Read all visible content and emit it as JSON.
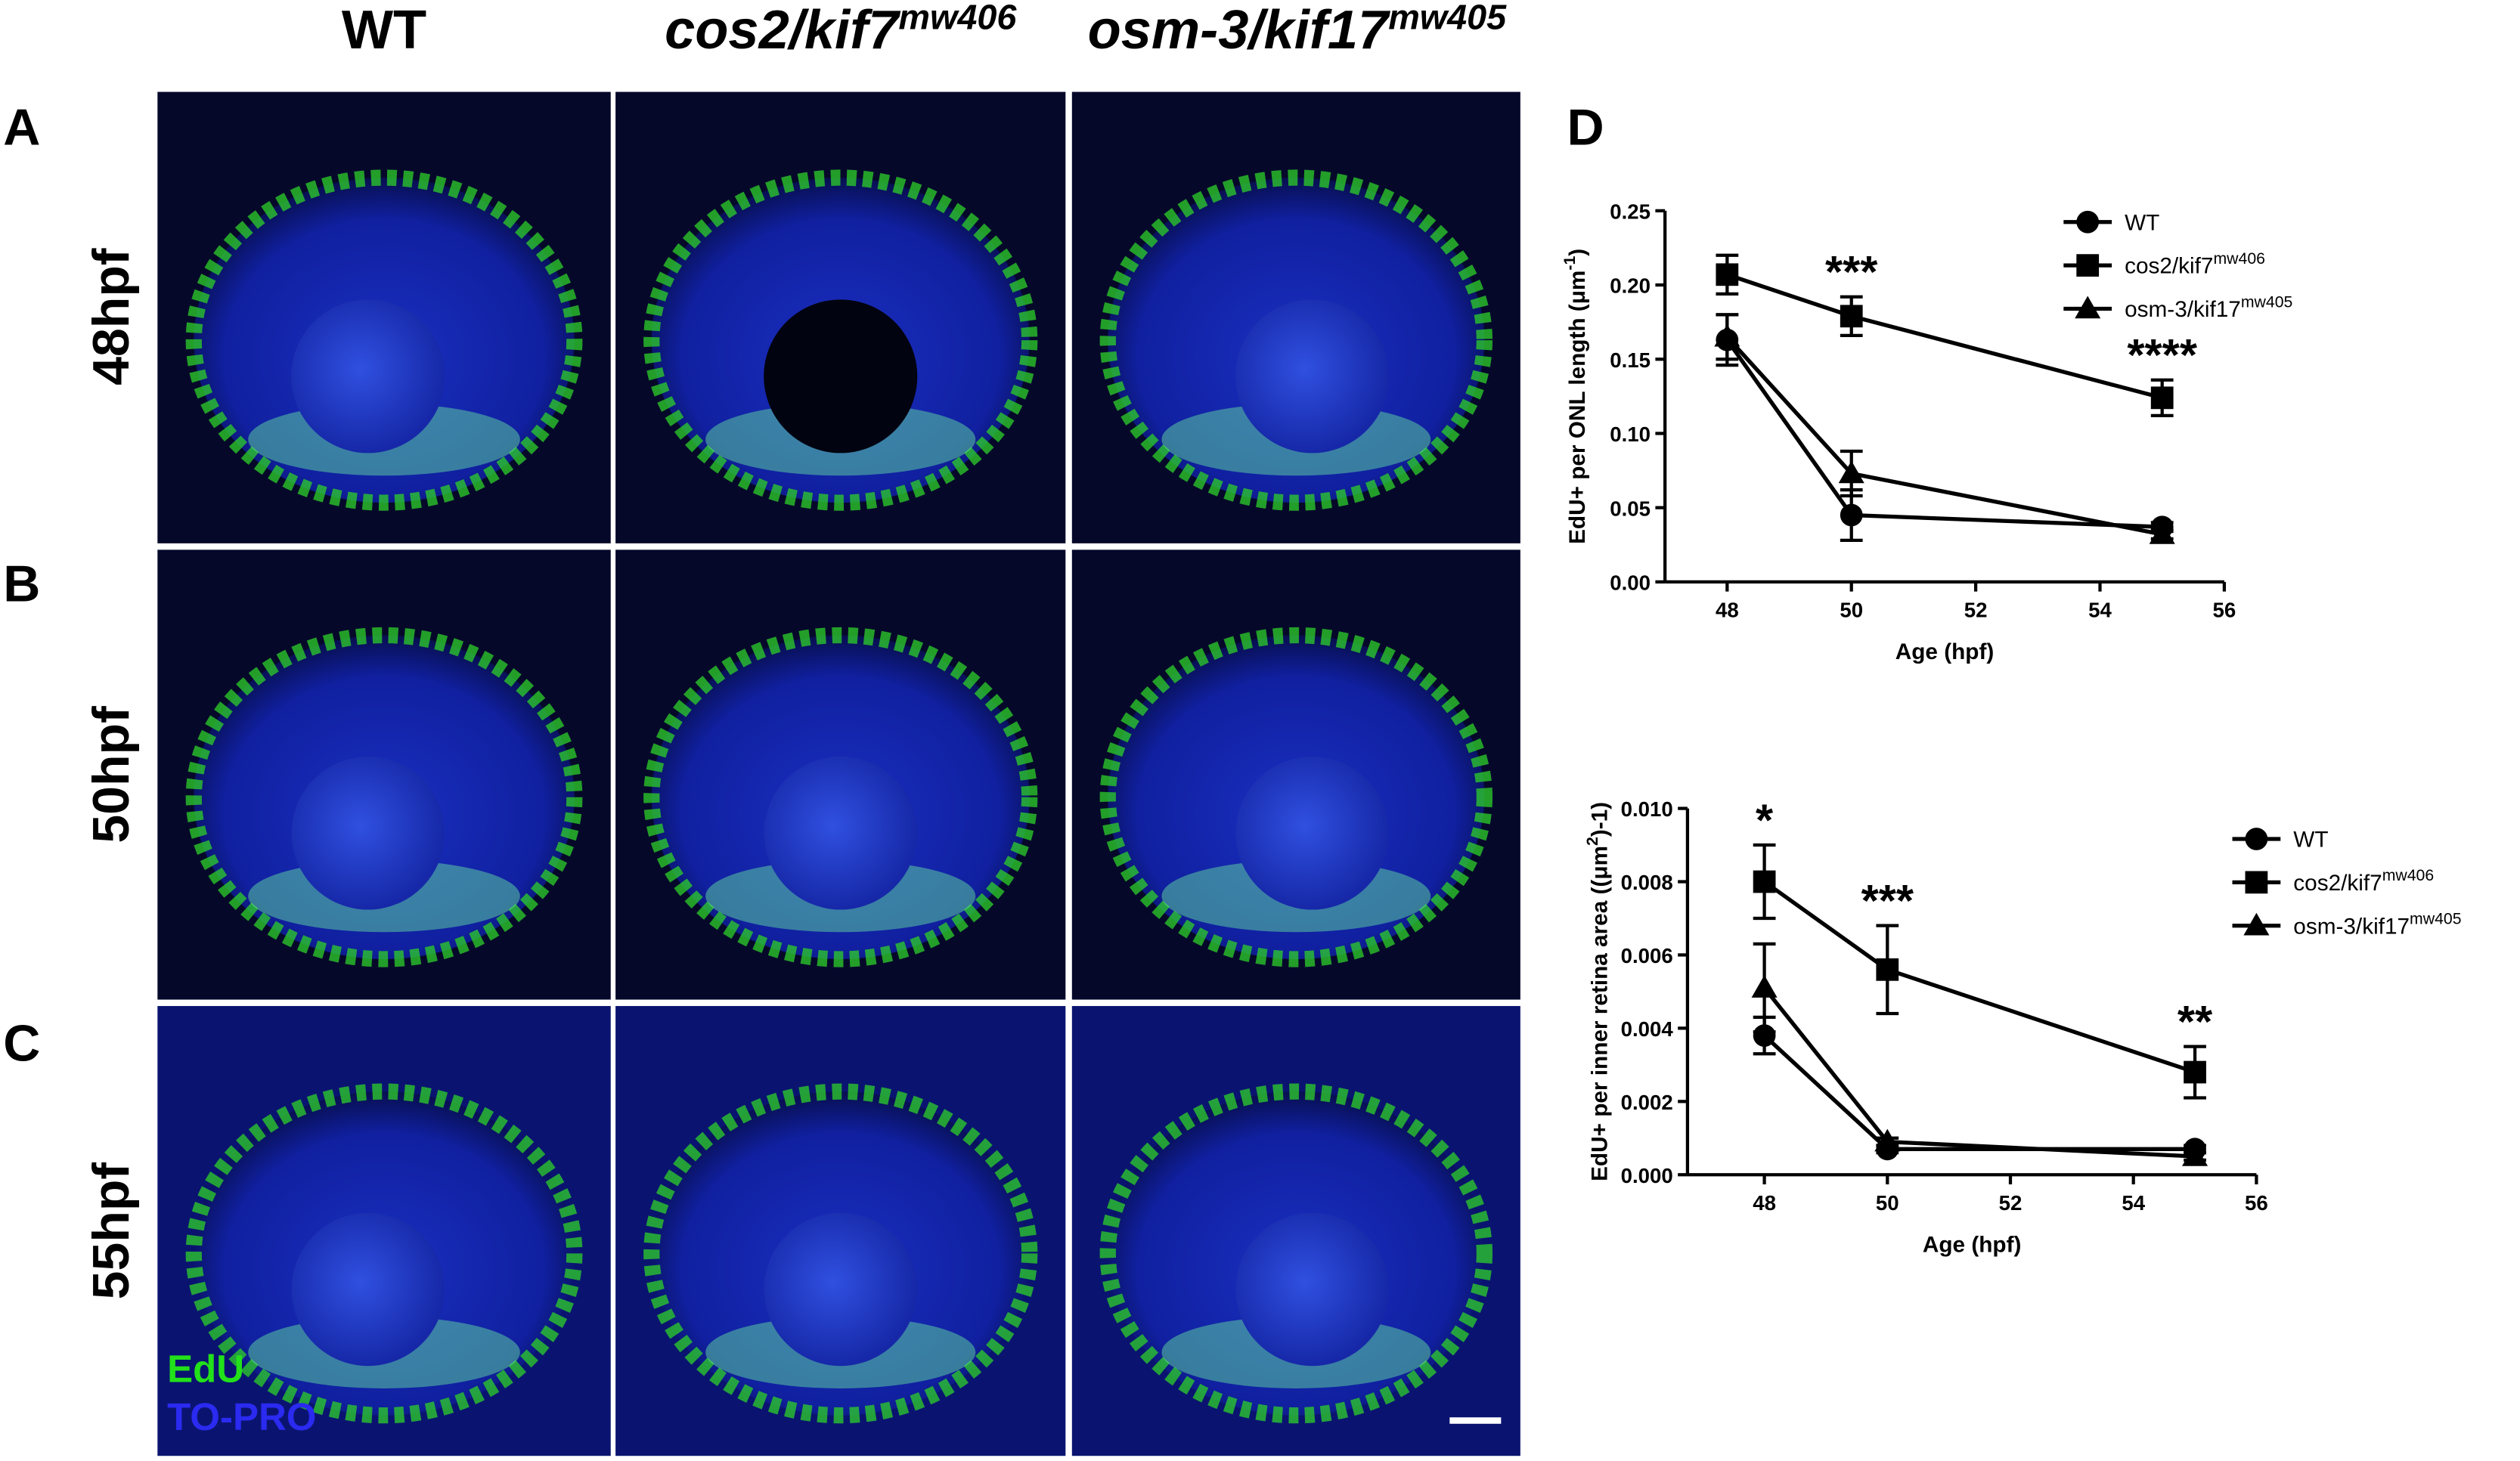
{
  "columns": [
    {
      "text": "WT"
    },
    {
      "text": "cos2/kif7",
      "sup": "mw406"
    },
    {
      "text": "osm-3/kif17",
      "sup": "mw405"
    }
  ],
  "rows": [
    "48hpf",
    "50hpf",
    "55hpf"
  ],
  "panel_letters": [
    "A",
    "B",
    "C",
    "D"
  ],
  "stain_labels": [
    {
      "text": "EdU",
      "color": "#22e01a"
    },
    {
      "text": "TO-PRO",
      "color": "#2a2af0"
    }
  ],
  "chart_data": [
    {
      "type": "line",
      "ylabel": {
        "text": "EdU+ per ONL length (μm",
        "sup": "-1",
        "tail": ")"
      },
      "xlabel": "Age (hpf)",
      "x": [
        48,
        50,
        55
      ],
      "xlim": [
        47,
        56
      ],
      "xticks": [
        48,
        50,
        52,
        54,
        56
      ],
      "ylim": [
        0,
        0.25
      ],
      "yticks": [
        {
          "value": 0,
          "label": "0.00"
        },
        {
          "value": 0.05,
          "label": "0.05"
        },
        {
          "value": 0.1,
          "label": "0.10"
        },
        {
          "value": 0.15,
          "label": "0.15"
        },
        {
          "value": 0.2,
          "label": "0.20"
        },
        {
          "value": 0.25,
          "label": "0.25"
        }
      ],
      "legend": "right",
      "series": [
        {
          "name": "WT",
          "marker": "circle",
          "color": "#000000",
          "values": [
            0.163,
            0.045,
            0.037
          ],
          "errors": [
            0.017,
            0.017,
            0.003
          ]
        },
        {
          "name": "cos2/kif7",
          "name_sup": "mw406",
          "marker": "square",
          "color": "#000000",
          "values": [
            0.207,
            0.179,
            0.124
          ],
          "errors": [
            0.013,
            0.013,
            0.012
          ]
        },
        {
          "name": "osm-3/kif17",
          "name_sup": "mw405",
          "marker": "triangle",
          "color": "#000000",
          "values": [
            0.165,
            0.073,
            0.032
          ],
          "errors": [
            0.015,
            0.015,
            0.003
          ]
        }
      ],
      "annotations": [
        {
          "x": 50,
          "text": "***"
        },
        {
          "x": 55,
          "text": "****"
        }
      ]
    },
    {
      "type": "line",
      "ylabel": {
        "text": "EdU+ per inner retina area ((μm",
        "sup": "2",
        "tail": ")-1)"
      },
      "xlabel": "Age (hpf)",
      "x": [
        48,
        50,
        55
      ],
      "xlim": [
        46.75,
        56
      ],
      "xticks": [
        48,
        50,
        52,
        54,
        56
      ],
      "ylim": [
        0,
        0.01
      ],
      "yticks": [
        {
          "value": 0,
          "label": "0.000"
        },
        {
          "value": 0.002,
          "label": "0.002"
        },
        {
          "value": 0.004,
          "label": "0.004"
        },
        {
          "value": 0.006,
          "label": "0.006"
        },
        {
          "value": 0.008,
          "label": "0.008"
        },
        {
          "value": 0.01,
          "label": "0.010"
        }
      ],
      "legend": "right",
      "series": [
        {
          "name": "WT",
          "marker": "circle",
          "color": "#000000",
          "values": [
            0.0038,
            0.0007,
            0.0007
          ],
          "errors": [
            0.0005,
            0.0001,
            0.0001
          ]
        },
        {
          "name": "cos2/kif7",
          "name_sup": "mw406",
          "marker": "square",
          "color": "#000000",
          "values": [
            0.008,
            0.0056,
            0.0028
          ],
          "errors": [
            0.001,
            0.0012,
            0.0007
          ]
        },
        {
          "name": "osm-3/kif17",
          "name_sup": "mw405",
          "marker": "triangle",
          "color": "#000000",
          "values": [
            0.0051,
            0.0009,
            0.0005
          ],
          "errors": [
            0.0012,
            0.0001,
            0.0001
          ]
        }
      ],
      "annotations": [
        {
          "x": 48,
          "text": "*"
        },
        {
          "x": 50,
          "text": "***"
        },
        {
          "x": 55,
          "text": "**"
        }
      ]
    }
  ]
}
